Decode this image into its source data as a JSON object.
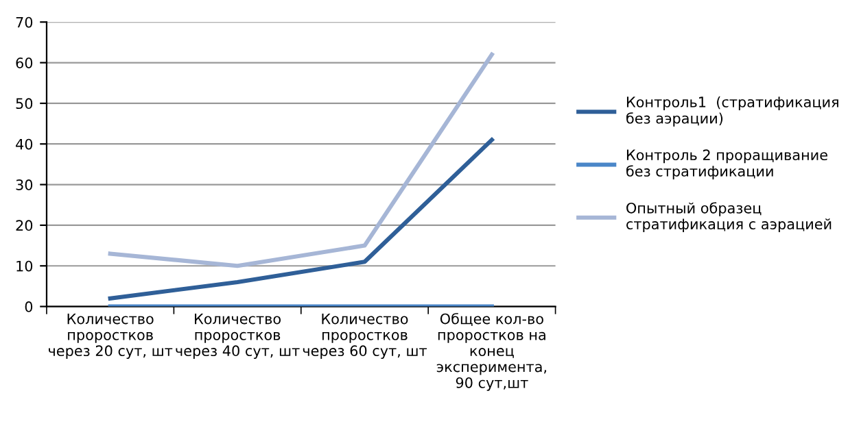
{
  "chart_data": {
    "type": "line",
    "categories": [
      "Количество\nпроростков\nчерез 20 сут, шт",
      "Количество\nпроростков\nчерез 40 сут, шт",
      "Количество\nпроростков\nчерез 60 сут, шт",
      "Общее кол-во\nпроростков на\nконец\nэксперимента,\n90 сут,шт"
    ],
    "series": [
      {
        "name": "Контроль1  (стратификация\nбез аэрации)",
        "color": "#2f5f98",
        "values": [
          2,
          6,
          11,
          41
        ]
      },
      {
        "name": "Контроль 2 проращивание\nбез стратификации",
        "color": "#4a86c8",
        "values": [
          0,
          0,
          0,
          0
        ]
      },
      {
        "name": "Опытный образец\nстратификация с аэрацией",
        "color": "#a6b6d6",
        "values": [
          13,
          10,
          15,
          62
        ]
      }
    ],
    "ylim": [
      0,
      70
    ],
    "yticks": [
      0,
      10,
      20,
      30,
      40,
      50,
      60,
      70
    ],
    "grid": "y",
    "legend": "right",
    "marker": "none"
  }
}
